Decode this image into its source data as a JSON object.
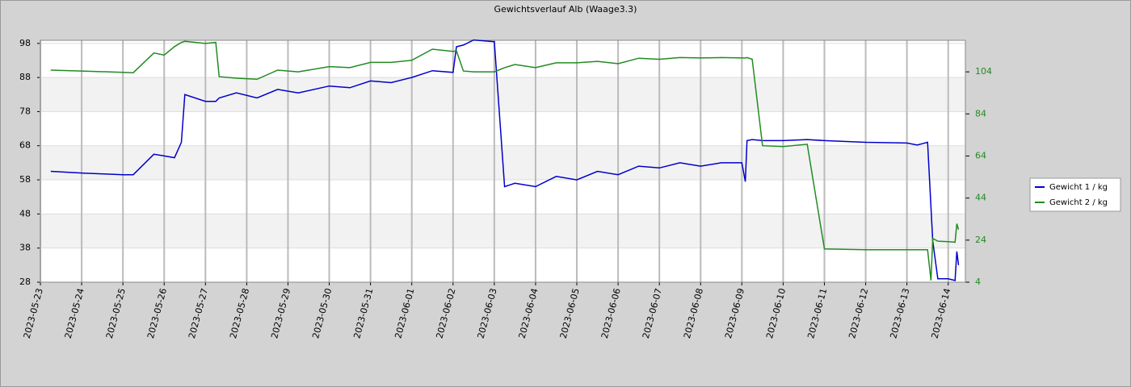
{
  "chart_data": {
    "type": "line",
    "title": "Gewichtsverlauf Alb (Waage3.3)",
    "x": [
      "2023-05-23T06:00",
      "2023-05-24T00:00",
      "2023-05-25T00:00",
      "2023-05-25T06:00",
      "2023-05-25T18:00",
      "2023-05-26T00:00",
      "2023-05-26T06:00",
      "2023-05-26T10:00",
      "2023-05-26T12:00",
      "2023-05-27T00:00",
      "2023-05-27T06:00",
      "2023-05-27T08:00",
      "2023-05-27T18:00",
      "2023-05-28T06:00",
      "2023-05-28T18:00",
      "2023-05-29T06:00",
      "2023-05-30T00:00",
      "2023-05-30T12:00",
      "2023-05-31T00:00",
      "2023-05-31T12:00",
      "2023-06-01T00:00",
      "2023-06-01T12:00",
      "2023-06-02T00:00",
      "2023-06-02T02:00",
      "2023-06-02T06:00",
      "2023-06-02T12:00",
      "2023-06-03T00:00",
      "2023-06-03T06:00",
      "2023-06-03T12:00",
      "2023-06-04T00:00",
      "2023-06-04T12:00",
      "2023-06-05T00:00",
      "2023-06-05T12:00",
      "2023-06-06T00:00",
      "2023-06-06T12:00",
      "2023-06-07T00:00",
      "2023-06-07T12:00",
      "2023-06-08T00:00",
      "2023-06-08T12:00",
      "2023-06-09T00:00",
      "2023-06-09T02:00",
      "2023-06-09T03:00",
      "2023-06-09T06:00",
      "2023-06-09T12:00",
      "2023-06-10T00:00",
      "2023-06-10T14:00",
      "2023-06-11T00:00",
      "2023-06-12T00:00",
      "2023-06-13T00:00",
      "2023-06-13T06:00",
      "2023-06-13T12:00",
      "2023-06-13T14:00",
      "2023-06-13T15:00",
      "2023-06-13T18:00",
      "2023-06-14T00:00",
      "2023-06-14T04:00",
      "2023-06-14T05:00",
      "2023-06-14T06:00"
    ],
    "series": [
      {
        "name": "Gewicht 1 / kg",
        "color": "#0000cc",
        "values": [
          60.5,
          60,
          59.5,
          59.5,
          65.5,
          65,
          64.5,
          69,
          83,
          81,
          81,
          82,
          83.5,
          82,
          84.5,
          83.5,
          85.5,
          85,
          87,
          86.5,
          88,
          90,
          89.5,
          97,
          97.5,
          99,
          98.5,
          56,
          57,
          56,
          59,
          58,
          60.5,
          59.5,
          62,
          61.5,
          63,
          62,
          63,
          63,
          57.5,
          69.5,
          69.8,
          69.5,
          69.5,
          69.8,
          69.5,
          69,
          68.8,
          68.2,
          69,
          50,
          40,
          29,
          29,
          28.5,
          37,
          33
        ]
      },
      {
        "name": "Gewicht 2 / kg",
        "color": "#228b22",
        "axis": "y2",
        "values": [
          104.8,
          104.4,
          103.8,
          103.6,
          113,
          112,
          116,
          118,
          118.5,
          117.5,
          118,
          101.7,
          101,
          100.5,
          104.8,
          104,
          106.5,
          106,
          108.5,
          108.5,
          109.5,
          114.8,
          113.7,
          114,
          104.4,
          104,
          104,
          106,
          107.5,
          106,
          108.3,
          108.3,
          109,
          107.9,
          110.5,
          110,
          110.8,
          110.6,
          110.8,
          110.6,
          110.6,
          110.8,
          110,
          68.9,
          68.5,
          69.6,
          19.8,
          19.4,
          19.4,
          19.4,
          19.4,
          4.8,
          24.8,
          23.5,
          23.3,
          23,
          31.8,
          29
        ]
      }
    ],
    "xlim": [
      "2023-05-23T00:00",
      "2023-06-14T10:00"
    ],
    "xticks": [
      "2023-05-23",
      "2023-05-24",
      "2023-05-25",
      "2023-05-26",
      "2023-05-27",
      "2023-05-28",
      "2023-05-29",
      "2023-05-30",
      "2023-05-31",
      "2023-06-01",
      "2023-06-02",
      "2023-06-03",
      "2023-06-04",
      "2023-06-05",
      "2023-06-06",
      "2023-06-07",
      "2023-06-08",
      "2023-06-09",
      "2023-06-10",
      "2023-06-11",
      "2023-06-12",
      "2023-06-13",
      "2023-06-14"
    ],
    "ylim": [
      28,
      98.9
    ],
    "yticks": [
      28,
      38,
      48,
      58,
      68,
      78,
      88,
      98
    ],
    "y2lim": [
      4,
      119
    ],
    "y2ticks": [
      4,
      24,
      44,
      64,
      84,
      104
    ],
    "grid": true,
    "legend": "right"
  }
}
